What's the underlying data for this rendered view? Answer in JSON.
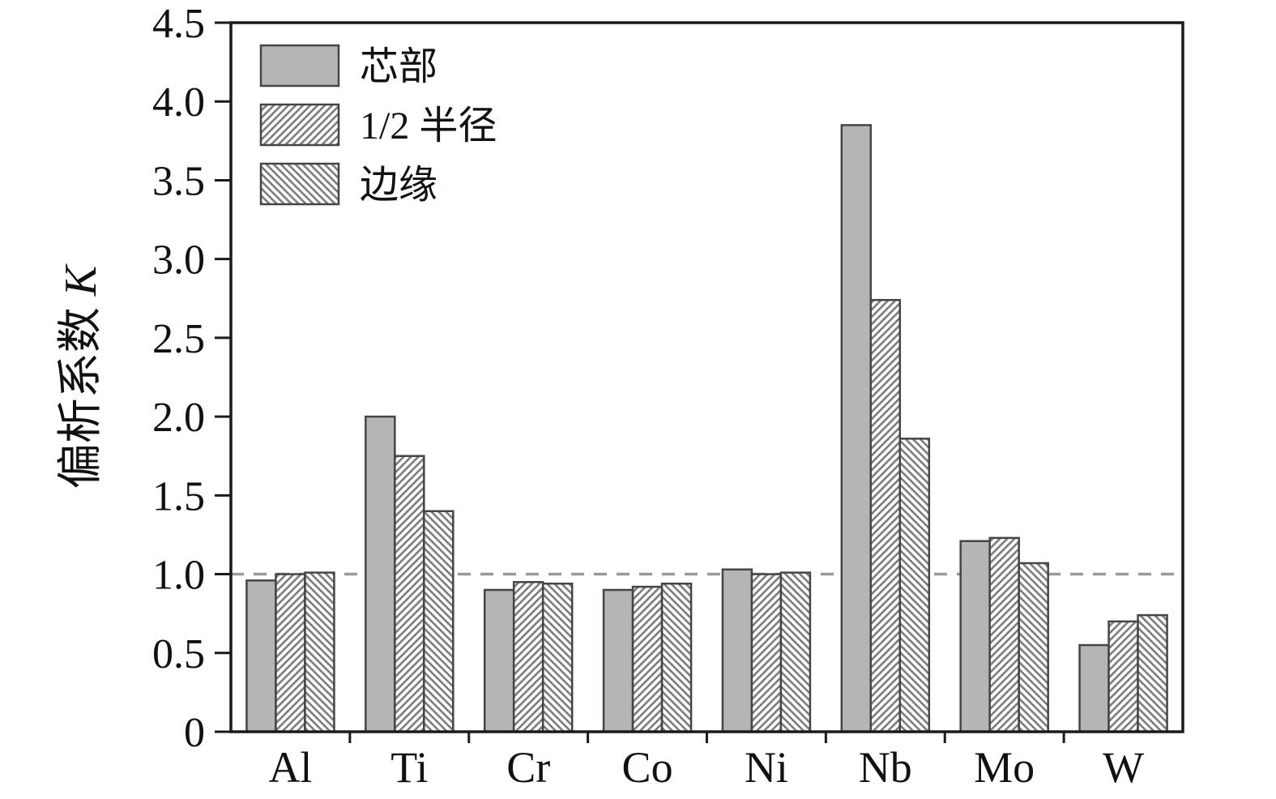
{
  "figure": {
    "description": "Grouped bar chart of segregation coefficient K for alloy elements at three radial positions"
  },
  "chart_data": {
    "type": "bar",
    "title": "",
    "categories": [
      "Al",
      "Ti",
      "Cr",
      "Co",
      "Ni",
      "Nb",
      "Mo",
      "W"
    ],
    "series": [
      {
        "name": "芯部",
        "style": "solid",
        "values": [
          0.96,
          2.0,
          0.9,
          0.9,
          1.03,
          3.85,
          1.21,
          0.55
        ]
      },
      {
        "name": "1/2 半径",
        "style": "hatch-forward",
        "values": [
          1.0,
          1.75,
          0.95,
          0.92,
          1.0,
          2.74,
          1.23,
          0.7
        ]
      },
      {
        "name": "边缘",
        "style": "hatch-backward",
        "values": [
          1.01,
          1.4,
          0.94,
          0.94,
          1.01,
          1.86,
          1.07,
          0.74
        ]
      }
    ],
    "xlabel": "",
    "ylabel_text": "偏析系数 ",
    "ylabel_symbol": "K",
    "ylim": [
      0,
      4.5
    ],
    "ytick_step": 0.5,
    "yticks": [
      "0",
      "0.5",
      "1.0",
      "1.5",
      "2.0",
      "2.5",
      "3.0",
      "3.5",
      "4.0",
      "4.5"
    ],
    "reference_line": {
      "y": 1.0,
      "style": "dashed"
    },
    "legend_position": "top-left",
    "grid": false,
    "colors": {
      "bar_fill": "#b5b5b5",
      "bar_edge": "#454545",
      "hatch_line": "#7d7d7d",
      "axis_color": "#1a1a1a",
      "ref_line": "#9a9a9a",
      "background": "#ffffff"
    }
  }
}
